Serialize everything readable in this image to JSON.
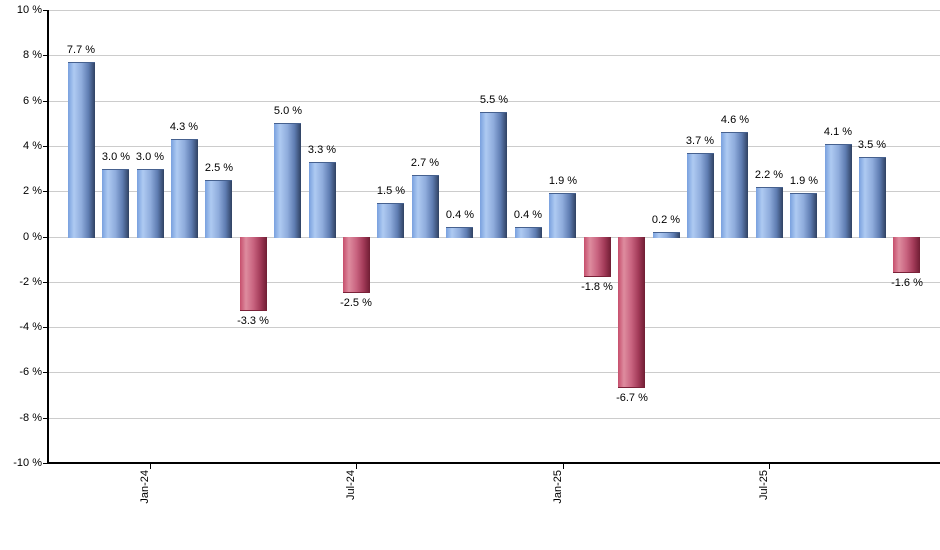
{
  "chart_data": {
    "type": "bar",
    "title": "",
    "description": "Monthly percent returns bar chart, positive months blue, negative months red",
    "values": [
      7.7,
      3.0,
      3.0,
      4.3,
      2.5,
      -3.3,
      5.0,
      3.3,
      -2.5,
      1.5,
      2.7,
      0.4,
      5.5,
      0.4,
      1.9,
      -1.8,
      -6.7,
      0.2,
      3.7,
      4.6,
      2.2,
      1.9,
      4.1,
      3.5,
      -1.6
    ],
    "bar_labels": [
      "7.7 %",
      "3.0 %",
      "3.0 %",
      "4.3 %",
      "2.5 %",
      "-3.3 %",
      "5.0 %",
      "3.3 %",
      "-2.5 %",
      "1.5 %",
      "2.7 %",
      "0.4 %",
      "5.5 %",
      "0.4 %",
      "1.9 %",
      "-1.8 %",
      "-6.7 %",
      "0.2 %",
      "3.7 %",
      "4.6 %",
      "2.2 %",
      "1.9 %",
      "4.1 %",
      "3.5 %",
      "-1.6 %"
    ],
    "x_tick_labels": [
      "Jan-24",
      "Jul-24",
      "Jan-25",
      "Jul-25"
    ],
    "x_tick_bar_indices": [
      2,
      8,
      14,
      20
    ],
    "y_tick_labels": [
      "10 %",
      "8 %",
      "6 %",
      "4 %",
      "2 %",
      "0 %",
      "-2 %",
      "-4 %",
      "-6 %",
      "-8 %",
      "-10 %"
    ],
    "y_tick_values": [
      10,
      8,
      6,
      4,
      2,
      0,
      -2,
      -4,
      -6,
      -8,
      -10
    ],
    "ylim": [
      -10,
      10
    ],
    "y_step": 2,
    "grid": true,
    "legend_position": "none",
    "colors": {
      "positive_bar_gradient": [
        "#79a0de",
        "#aecaf2",
        "#8facdc",
        "#5f7db2",
        "#2f4162"
      ],
      "negative_bar_gradient": [
        "#c64e6c",
        "#de8c9f",
        "#c8637f",
        "#a23a58",
        "#6f1d33"
      ],
      "gridline": "#cccccc",
      "axis": "#000000",
      "label_text": "#000000",
      "background": "#ffffff"
    }
  }
}
